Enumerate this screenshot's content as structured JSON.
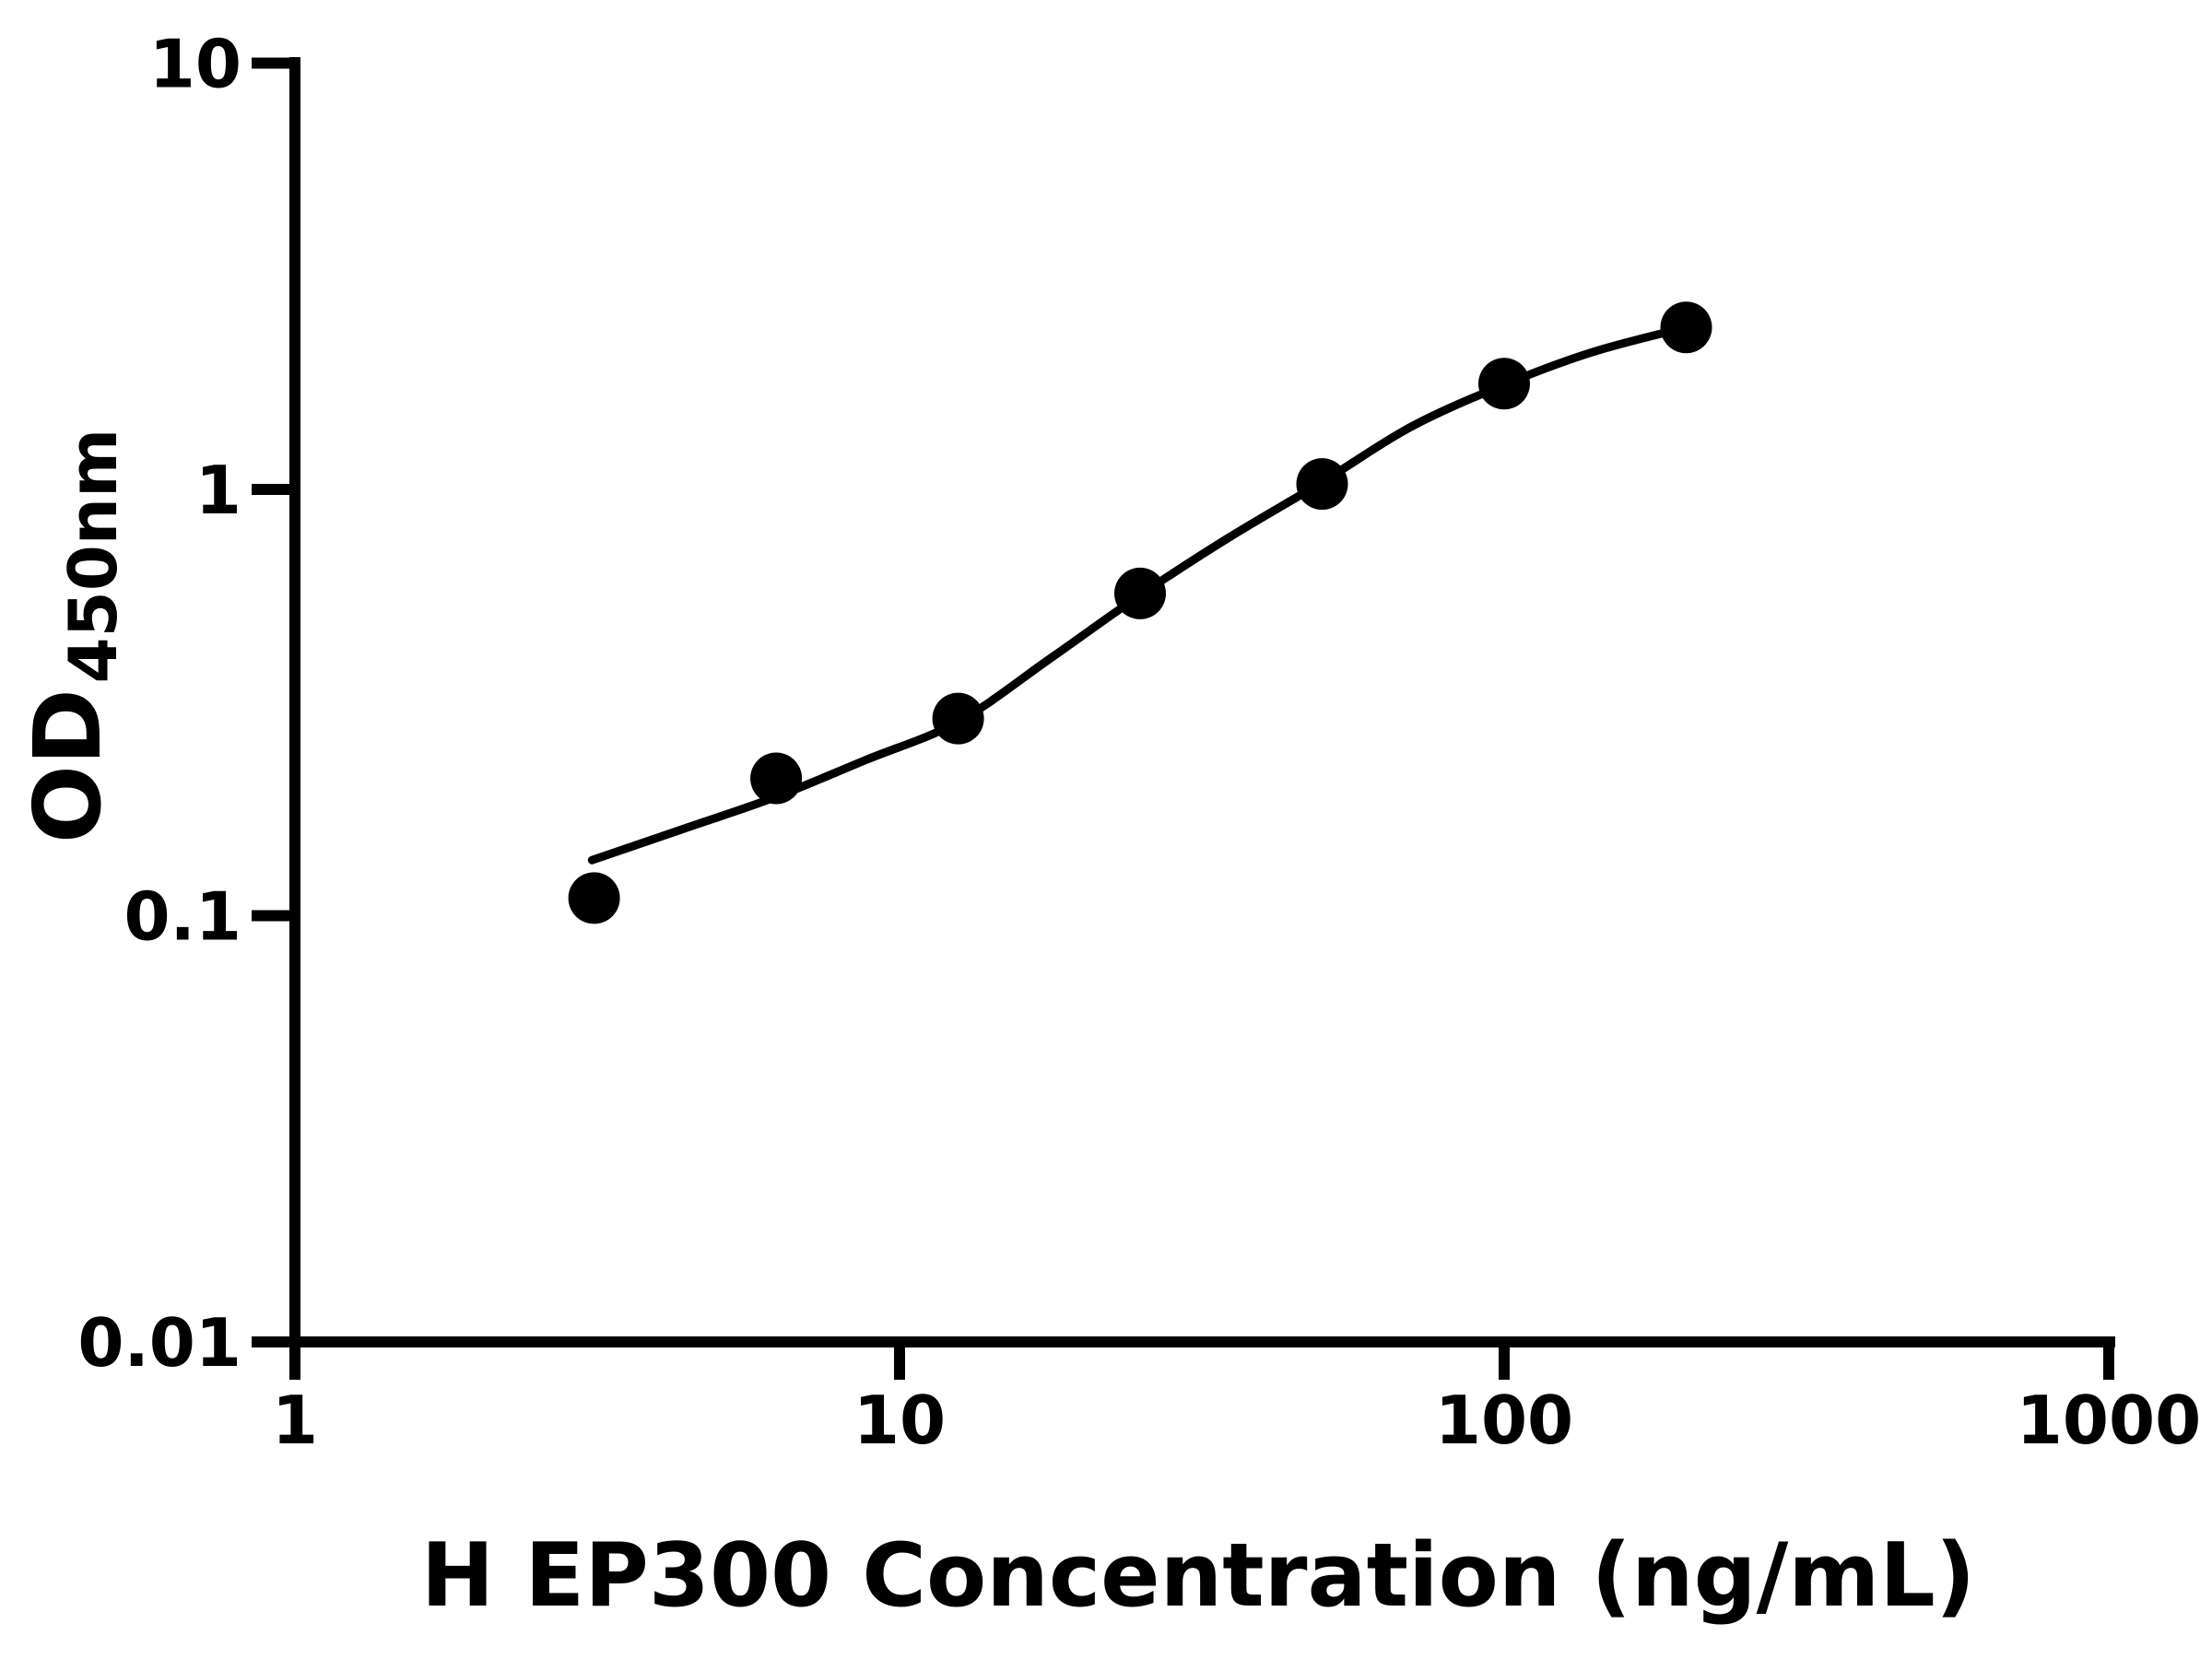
{
  "chart_data": {
    "type": "scatter",
    "title": "",
    "xlabel": "H EP300 Concentration (ng/mL)",
    "ylabel_base": "OD",
    "ylabel_subscript": "450nm",
    "x_scale": "log",
    "y_scale": "log",
    "xlim": [
      1,
      1000
    ],
    "ylim": [
      0.01,
      10
    ],
    "grid": false,
    "legend": "none",
    "background_color": "#ffffff",
    "axis_color": "#000000",
    "x_ticks": [
      {
        "value": 1,
        "label": "1"
      },
      {
        "value": 10,
        "label": "10"
      },
      {
        "value": 100,
        "label": "100"
      },
      {
        "value": 1000,
        "label": "1000"
      }
    ],
    "y_ticks": [
      {
        "value": 0.01,
        "label": "0.01"
      },
      {
        "value": 0.1,
        "label": "0.1"
      },
      {
        "value": 1,
        "label": "1"
      },
      {
        "value": 10,
        "label": "10"
      }
    ],
    "series": [
      {
        "marker": "filled-circle",
        "color": "#000000",
        "points": [
          {
            "x": 3.125,
            "y": 0.11
          },
          {
            "x": 6.25,
            "y": 0.21
          },
          {
            "x": 12.5,
            "y": 0.29
          },
          {
            "x": 25,
            "y": 0.57
          },
          {
            "x": 50,
            "y": 1.03
          },
          {
            "x": 100,
            "y": 1.77
          },
          {
            "x": 200,
            "y": 2.4
          }
        ]
      }
    ],
    "fit_curve": {
      "color": "#000000",
      "points": [
        [
          3.1,
          0.135
        ],
        [
          4.4,
          0.16
        ],
        [
          6.25,
          0.19
        ],
        [
          8.8,
          0.232
        ],
        [
          12.5,
          0.285
        ],
        [
          17.7,
          0.4
        ],
        [
          25,
          0.565
        ],
        [
          35,
          0.77
        ],
        [
          50,
          1.04
        ],
        [
          70,
          1.4
        ],
        [
          100,
          1.76
        ],
        [
          140,
          2.1
        ],
        [
          200,
          2.4
        ]
      ]
    }
  }
}
